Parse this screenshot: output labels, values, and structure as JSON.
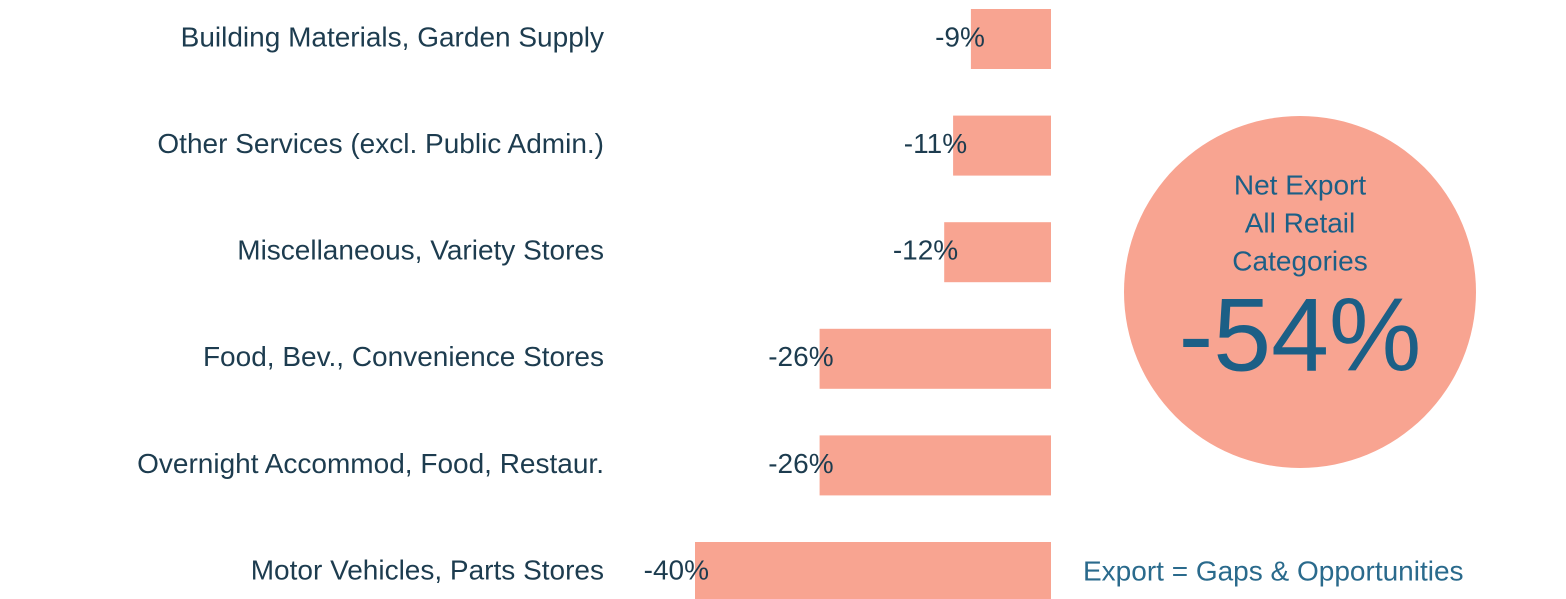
{
  "chart_data": {
    "type": "barh",
    "categories": [
      "Building Materials, Garden Supply",
      "Other Services (excl. Public Admin.)",
      "Miscellaneous, Variety Stores",
      "Food, Bev., Convenience Stores",
      "Overnight Accommod, Food, Restaur.",
      "Motor Vehicles, Parts Stores"
    ],
    "values": [
      -9,
      -11,
      -12,
      -26,
      -26,
      -40
    ],
    "value_labels": [
      "-9%",
      "-11%",
      "-12%",
      "-26%",
      "-26%",
      "-40%"
    ],
    "color": "#f8a491",
    "xlim": [
      -40,
      0
    ],
    "annotation": {
      "lines": [
        "Net Export",
        "All Retail",
        "Categories"
      ],
      "value": "-54%",
      "color": "#f8a491"
    },
    "footnote": "Export = Gaps & Opportunities"
  }
}
